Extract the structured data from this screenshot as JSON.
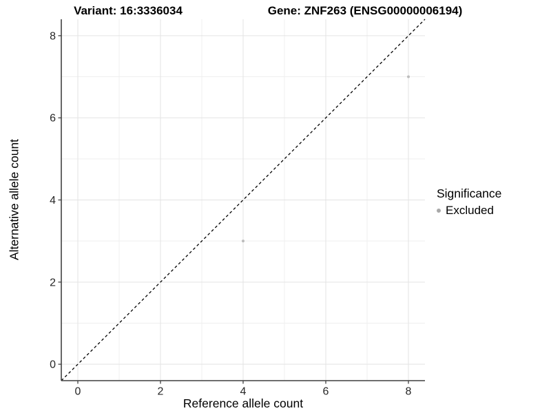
{
  "header": {
    "variant_title": "Variant: 16:3336034",
    "gene_title": "Gene: ZNF263 (ENSG00000006194)"
  },
  "chart_data": {
    "type": "scatter",
    "xlabel": "Reference allele count",
    "ylabel": "Alternative allele count",
    "xlim": [
      -0.4,
      8.4
    ],
    "ylim": [
      -0.4,
      8.4
    ],
    "x_ticks": [
      "0",
      "2",
      "4",
      "6",
      "8"
    ],
    "y_ticks": [
      "0",
      "2",
      "4",
      "6",
      "8"
    ],
    "x_tick_values": [
      0,
      2,
      4,
      6,
      8
    ],
    "y_tick_values": [
      0,
      2,
      4,
      6,
      8
    ],
    "minor_tick_values": [
      1,
      3,
      5,
      7
    ],
    "grid": "on",
    "legend_position": "right",
    "identity_line": {
      "style": "dashed",
      "from": [
        -0.4,
        -0.4
      ],
      "to": [
        8.4,
        8.4
      ]
    },
    "series": [
      {
        "name": "Excluded",
        "points": [
          {
            "x": 4,
            "y": 3
          },
          {
            "x": 8,
            "y": 7
          }
        ]
      }
    ],
    "colors": {
      "point": "#bcbcbc",
      "legend_dot": "#a9a9a9",
      "grid_major": "#e3e3e3",
      "grid_minor": "#efefef",
      "axis_line": "#3f3f3f",
      "tick_label": "#262626",
      "identity_line": "#000000"
    }
  },
  "legend": {
    "title": "Significance",
    "items": [
      {
        "label": "Excluded"
      }
    ]
  }
}
